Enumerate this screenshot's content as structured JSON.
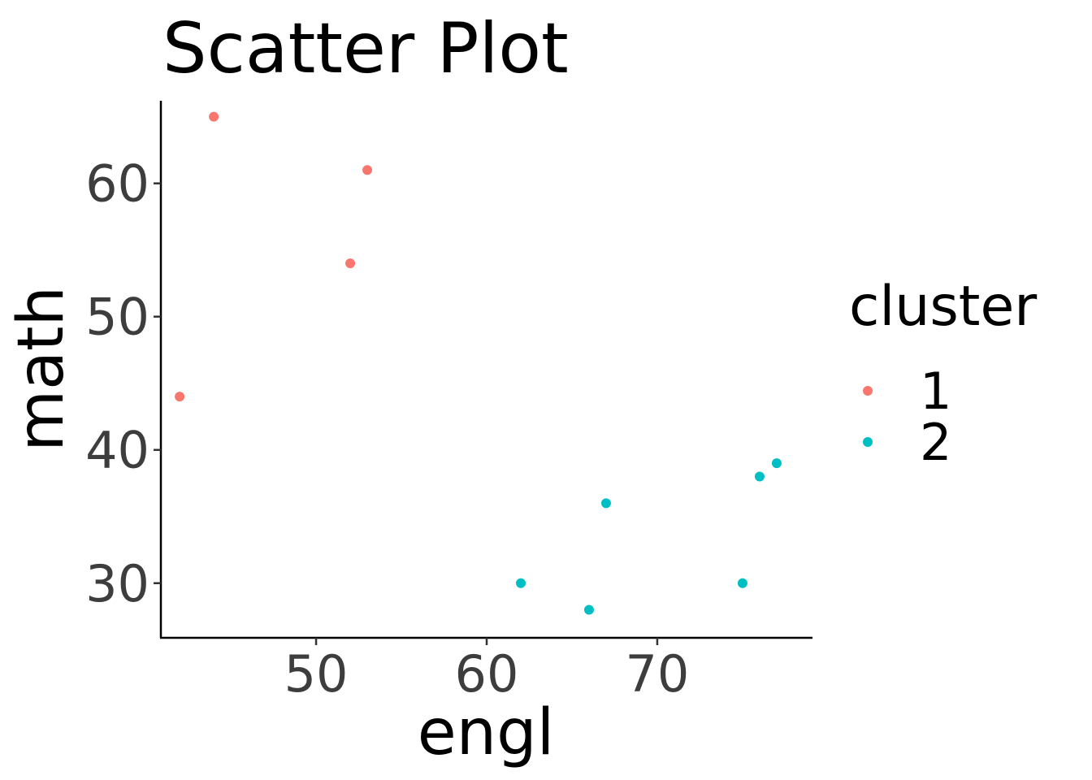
{
  "chart_data": {
    "type": "scatter",
    "title": "Scatter Plot",
    "xlabel": "engl",
    "ylabel": "math",
    "xlim": [
      40.9,
      79.1
    ],
    "ylim": [
      25.9,
      66.2
    ],
    "xticks": [
      50,
      60,
      70
    ],
    "yticks": [
      30,
      40,
      50,
      60
    ],
    "grid": false,
    "legend": {
      "title": "cluster",
      "placement": "right",
      "entries": [
        "1",
        "2"
      ]
    },
    "series": [
      {
        "name": "1",
        "color": "#f8766d",
        "points": [
          {
            "x": 42,
            "y": 44
          },
          {
            "x": 44,
            "y": 65
          },
          {
            "x": 52,
            "y": 54
          },
          {
            "x": 53,
            "y": 61
          }
        ]
      },
      {
        "name": "2",
        "color": "#00bfc4",
        "points": [
          {
            "x": 62,
            "y": 30
          },
          {
            "x": 66,
            "y": 28
          },
          {
            "x": 67,
            "y": 36
          },
          {
            "x": 75,
            "y": 30
          },
          {
            "x": 76,
            "y": 38
          },
          {
            "x": 77,
            "y": 39
          }
        ]
      }
    ]
  }
}
